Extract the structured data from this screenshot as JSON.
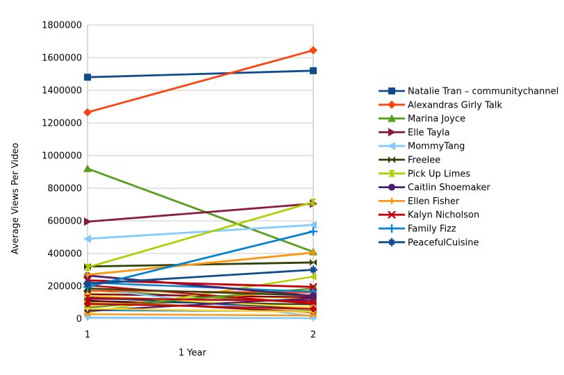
{
  "chart_data": {
    "type": "line",
    "title": "",
    "xlabel": "1 Year",
    "ylabel": "Average Views Per Video",
    "x": [
      1,
      2
    ],
    "x_ticks": [
      "1",
      "2"
    ],
    "ylim": [
      0,
      1800000
    ],
    "yticks": [
      0,
      200000,
      400000,
      600000,
      800000,
      1000000,
      1200000,
      1400000,
      1600000,
      1800000
    ],
    "grid": true,
    "legend_position": "right",
    "series": [
      {
        "name": "Natalie Tran – communitychannel",
        "color": "#0f4c8c",
        "marker": "square",
        "values": [
          1480000,
          1520000
        ],
        "in_legend": true
      },
      {
        "name": "Alexandras Girly Talk",
        "color": "#ff420e",
        "marker": "diamond",
        "values": [
          1265000,
          1645000
        ],
        "in_legend": true
      },
      {
        "name": "Marina Joyce",
        "color": "#579d1c",
        "marker": "arrow-up",
        "values": [
          920000,
          410000
        ],
        "in_legend": true
      },
      {
        "name": "Elle Tayla",
        "color": "#8b1a3b",
        "marker": "arrow-right",
        "values": [
          595000,
          705000
        ],
        "in_legend": true
      },
      {
        "name": "MommyTang",
        "color": "#83caff",
        "marker": "arrow-left",
        "values": [
          490000,
          575000
        ],
        "in_legend": true
      },
      {
        "name": "Freelee",
        "color": "#314004",
        "marker": "bowtie",
        "values": [
          320000,
          345000
        ],
        "in_legend": true
      },
      {
        "name": "Pick Up Limes",
        "color": "#aecf00",
        "marker": "sandglass",
        "values": [
          315000,
          715000
        ],
        "in_legend": true
      },
      {
        "name": "Caitlin Shoemaker",
        "color": "#4b1f6f",
        "marker": "circle",
        "values": [
          265000,
          140000
        ],
        "in_legend": true
      },
      {
        "name": "Ellen Fisher",
        "color": "#ff950e",
        "marker": "star",
        "values": [
          270000,
          405000
        ],
        "in_legend": true
      },
      {
        "name": "Kalyn Nicholson",
        "color": "#c5000b",
        "marker": "x",
        "values": [
          235000,
          195000
        ],
        "in_legend": true
      },
      {
        "name": "Family Fizz",
        "color": "#0084d1",
        "marker": "plus",
        "values": [
          195000,
          535000
        ],
        "in_legend": true
      },
      {
        "name": "PeacefulCuisine",
        "color": "#0f4c8c",
        "marker": "asterisk",
        "values": [
          215000,
          300000
        ],
        "in_legend": true
      },
      {
        "color": "#ffd320",
        "marker": "square",
        "values": [
          155000,
          125000
        ],
        "in_legend": false
      },
      {
        "color": "#579d1c",
        "marker": "diamond",
        "values": [
          175000,
          95000
        ],
        "in_legend": false
      },
      {
        "color": "#7e0021",
        "marker": "arrow-down",
        "values": [
          150000,
          132000
        ],
        "in_legend": false
      },
      {
        "color": "#83caff",
        "marker": "arrow-up",
        "values": [
          190000,
          15000
        ],
        "in_legend": false
      },
      {
        "color": "#314004",
        "marker": "arrow-right",
        "values": [
          108000,
          88000
        ],
        "in_legend": false
      },
      {
        "color": "#aecf00",
        "marker": "arrow-left",
        "values": [
          38000,
          258000
        ],
        "in_legend": false
      },
      {
        "color": "#4b1f6f",
        "marker": "bowtie",
        "values": [
          122000,
          112000
        ],
        "in_legend": false
      },
      {
        "color": "#ff950e",
        "marker": "sandglass",
        "values": [
          82000,
          172000
        ],
        "in_legend": false
      },
      {
        "color": "#c5000b",
        "marker": "circle",
        "values": [
          205000,
          92000
        ],
        "in_legend": false
      },
      {
        "color": "#0084d1",
        "marker": "star",
        "values": [
          52000,
          46000
        ],
        "in_legend": false
      },
      {
        "color": "#004586",
        "marker": "x",
        "values": [
          132000,
          62000
        ],
        "in_legend": false
      },
      {
        "color": "#ff420e",
        "marker": "plus",
        "values": [
          172000,
          160000
        ],
        "in_legend": false
      },
      {
        "color": "#ffd320",
        "marker": "asterisk",
        "values": [
          142000,
          68000
        ],
        "in_legend": false
      },
      {
        "color": "#579d1c",
        "marker": "square",
        "values": [
          68000,
          186000
        ],
        "in_legend": false
      },
      {
        "color": "#7e0021",
        "marker": "diamond",
        "values": [
          112000,
          38000
        ],
        "in_legend": false
      },
      {
        "color": "#83caff",
        "marker": "arrow-down",
        "values": [
          8000,
          4000
        ],
        "in_legend": false
      },
      {
        "color": "#314004",
        "marker": "arrow-up",
        "values": [
          186000,
          142000
        ],
        "in_legend": false
      },
      {
        "color": "#aecf00",
        "marker": "arrow-right",
        "values": [
          98000,
          56000
        ],
        "in_legend": false
      },
      {
        "color": "#4b1f6f",
        "marker": "arrow-left",
        "values": [
          48000,
          126000
        ],
        "in_legend": false
      },
      {
        "color": "#ff950e",
        "marker": "bowtie",
        "values": [
          28000,
          20000
        ],
        "in_legend": false
      },
      {
        "color": "#c5000b",
        "marker": "sandglass",
        "values": [
          128000,
          106000
        ],
        "in_legend": false
      },
      {
        "color": "#0084d1",
        "marker": "circle",
        "values": [
          222000,
          166000
        ],
        "in_legend": false
      },
      {
        "color": "#ffd320",
        "marker": "star",
        "values": [
          62000,
          42000
        ],
        "in_legend": false
      },
      {
        "color": "#c5000b",
        "marker": "diamond",
        "values": [
          92000,
          60000
        ],
        "in_legend": false
      }
    ]
  },
  "colors": {
    "background": "#ffffff",
    "gridline": "#c9c9c9",
    "axis": "#b6b6b6",
    "text": "#000000"
  }
}
